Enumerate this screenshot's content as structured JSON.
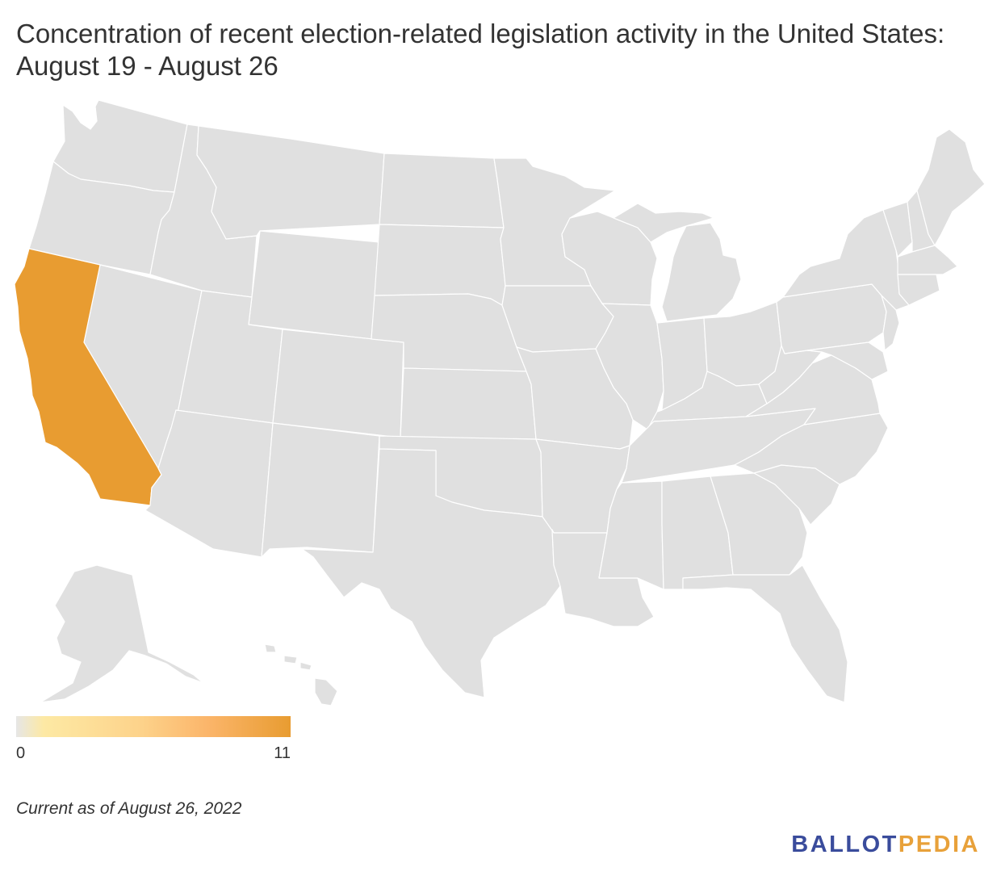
{
  "title": "Concentration of recent election-related legislation activity in the United States: August 19 - August 26",
  "legend": {
    "min_label": "0",
    "max_label": "11",
    "colors": [
      "#e6e6e6",
      "#fde9a4",
      "#fdd38b",
      "#fbb56a",
      "#e89c31"
    ]
  },
  "map": {
    "base_color": "#e0e0e0",
    "highlight_color": "#e89c31",
    "border_color": "#ffffff",
    "highlighted_states": [
      {
        "state": "California",
        "value": 11
      }
    ]
  },
  "footnote": "Current as of August 26, 2022",
  "brand": {
    "part1": "BALLOT",
    "part2": "PEDIA",
    "color1": "#3a4c9c",
    "color2": "#e8a13a"
  }
}
